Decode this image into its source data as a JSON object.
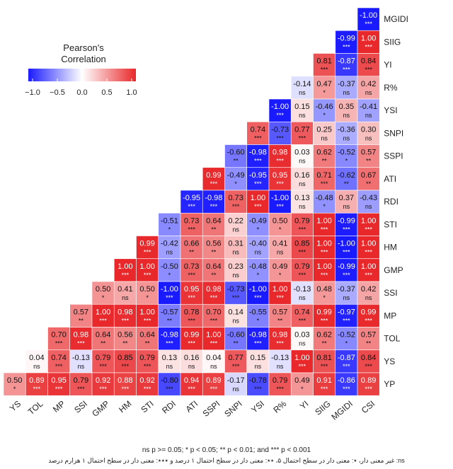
{
  "chart_data": {
    "type": "heatmap",
    "title": "",
    "legend_title": "Pearson's Correlation",
    "legend_ticks": [
      "−1.0",
      "−0.5",
      "0.0",
      "0.5",
      "1.0"
    ],
    "value_range": [
      -1,
      1
    ],
    "colors": {
      "negative": "#1a1aff",
      "zero": "#ffffff",
      "positive": "#e8282b"
    },
    "legend_placement": "top-left",
    "variables": [
      "YS",
      "TOL",
      "MP",
      "SSI",
      "GMP",
      "HM",
      "STI",
      "RDI",
      "ATI",
      "SSPI",
      "SNPI",
      "YSI",
      "R%",
      "YI",
      "SIIG",
      "MGIDI",
      "CSI"
    ],
    "row_labels": [
      "MGIDI",
      "SIIG",
      "YI",
      "R%",
      "YSI",
      "SNPI",
      "SSPI",
      "ATI",
      "RDI",
      "STI",
      "HM",
      "GMP",
      "SSI",
      "MP",
      "TOL",
      "YS",
      "YP"
    ],
    "col_labels": [
      "YS",
      "TOL",
      "MP",
      "SSI",
      "GMP",
      "HM",
      "STI",
      "RDI",
      "ATI",
      "SSPI",
      "SNPI",
      "YSI",
      "R%",
      "YI",
      "SIIG",
      "MGIDI",
      "CSI"
    ],
    "rows": [
      {
        "label": "MGIDI",
        "values": [
          "-1.00"
        ],
        "sig": [
          "***"
        ]
      },
      {
        "label": "SIIG",
        "values": [
          "-0.99",
          "1.00"
        ],
        "sig": [
          "***",
          "***"
        ]
      },
      {
        "label": "YI",
        "values": [
          "0.81",
          "-0.87",
          "0.84"
        ],
        "sig": [
          "***",
          "***",
          "***"
        ]
      },
      {
        "label": "R%",
        "values": [
          "-0.14",
          "0.47",
          "-0.37",
          "0.42"
        ],
        "sig": [
          "ns",
          "*",
          "ns",
          "ns"
        ]
      },
      {
        "label": "YSI",
        "values": [
          "-1.00",
          "0.15",
          "-0.46",
          "0.35",
          "-0.41"
        ],
        "sig": [
          "***",
          "ns",
          "*",
          "ns",
          "ns"
        ]
      },
      {
        "label": "SNPI",
        "values": [
          "0.74",
          "-0.73",
          "0.77",
          "0.25",
          "-0.36",
          "0.30"
        ],
        "sig": [
          "***",
          "***",
          "***",
          "ns",
          "ns",
          "ns"
        ]
      },
      {
        "label": "SSPI",
        "values": [
          "-0.60",
          "-0.98",
          "0.98",
          "0.03",
          "0.62",
          "-0.52",
          "0.57"
        ],
        "sig": [
          "**",
          "***",
          "***",
          "ns",
          "**",
          "*",
          "**"
        ]
      },
      {
        "label": "ATI",
        "values": [
          "0.99",
          "-0.49",
          "-0.95",
          "0.95",
          "0.16",
          "0.71",
          "-0.62",
          "0.67"
        ],
        "sig": [
          "***",
          "*",
          "***",
          "***",
          "ns",
          "***",
          "**",
          "**"
        ]
      },
      {
        "label": "RDI",
        "values": [
          "-0.95",
          "-0.98",
          "0.73",
          "1.00",
          "-1.00",
          "0.13",
          "-0.48",
          "0.37",
          "-0.43"
        ],
        "sig": [
          "***",
          "***",
          "***",
          "***",
          "***",
          "ns",
          "*",
          "ns",
          "ns"
        ]
      },
      {
        "label": "STI",
        "values": [
          "-0.51",
          "0.73",
          "0.64",
          "0.22",
          "-0.49",
          "0.50",
          "0.79",
          "1.00",
          "-0.99",
          "1.00"
        ],
        "sig": [
          "*",
          "***",
          "**",
          "ns",
          "*",
          "*",
          "***",
          "***",
          "***",
          "***"
        ]
      },
      {
        "label": "HM",
        "values": [
          "0.99",
          "-0.42",
          "0.66",
          "0.56",
          "0.31",
          "-0.40",
          "0.41",
          "0.85",
          "1.00",
          "-1.00",
          "1.00"
        ],
        "sig": [
          "***",
          "ns",
          "**",
          "**",
          "ns",
          "ns",
          "ns",
          "***",
          "***",
          "***",
          "***"
        ]
      },
      {
        "label": "GMP",
        "values": [
          "1.00",
          "1.00",
          "-0.50",
          "0.73",
          "0.64",
          "0.23",
          "-0.48",
          "0.49",
          "0.79",
          "1.00",
          "-0.99",
          "1.00"
        ],
        "sig": [
          "***",
          "***",
          "*",
          "***",
          "**",
          "ns",
          "*",
          "*",
          "***",
          "***",
          "***",
          "***"
        ]
      },
      {
        "label": "SSI",
        "values": [
          "0.50",
          "0.41",
          "0.50",
          "-1.00",
          "0.95",
          "0.98",
          "-0.73",
          "-1.00",
          "1.00",
          "-0.13",
          "0.48",
          "-0.37",
          "0.42"
        ],
        "sig": [
          "*",
          "ns",
          "*",
          "***",
          "***",
          "***",
          "***",
          "***",
          "***",
          "ns",
          "*",
          "ns",
          "ns"
        ]
      },
      {
        "label": "MP",
        "values": [
          "0.57",
          "1.00",
          "0.98",
          "1.00",
          "-0.57",
          "0.78",
          "0.70",
          "0.14",
          "-0.55",
          "0.57",
          "0.74",
          "0.99",
          "-0.97",
          "0.99"
        ],
        "sig": [
          "**",
          "***",
          "***",
          "***",
          "**",
          "***",
          "***",
          "ns",
          "*",
          "**",
          "***",
          "***",
          "***",
          "***"
        ]
      },
      {
        "label": "TOL",
        "values": [
          "0.70",
          "0.98",
          "0.64",
          "0.56",
          "0.64",
          "-0.98",
          "0.99",
          "1.00",
          "-0.60",
          "-0.98",
          "0.98",
          "0.03",
          "0.62",
          "-0.52",
          "0.57"
        ],
        "sig": [
          "***",
          "***",
          "**",
          "**",
          "**",
          "***",
          "***",
          "***",
          "**",
          "***",
          "***",
          "ns",
          "**",
          "*",
          "**"
        ]
      },
      {
        "label": "YS",
        "values": [
          "0.04",
          "0.74",
          "-0.13",
          "0.79",
          "0.85",
          "0.79",
          "0.13",
          "0.16",
          "0.04",
          "0.77",
          "0.15",
          "-0.13",
          "1.00",
          "0.81",
          "-0.87",
          "0.84"
        ],
        "sig": [
          "ns",
          "***",
          "ns",
          "***",
          "***",
          "***",
          "ns",
          "ns",
          "ns",
          "***",
          "ns",
          "ns",
          "***",
          "***",
          "***",
          "***"
        ]
      },
      {
        "label": "YP",
        "values": [
          "0.50",
          "0.89",
          "0.95",
          "0.79",
          "0.92",
          "0.88",
          "0.92",
          "-0.80",
          "0.94",
          "0.89",
          "-0.17",
          "-0.78",
          "0.79",
          "0.49",
          "0.91",
          "-0.86",
          "0.89"
        ],
        "sig": [
          "*",
          "***",
          "***",
          "***",
          "***",
          "***",
          "***",
          "***",
          "***",
          "***",
          "ns",
          "***",
          "***",
          "*",
          "***",
          "***",
          "***"
        ]
      }
    ],
    "footnote": "ns p >= 0.05; * p < 0.05; ** p < 0.01; and *** p < 0.001",
    "footnote_fa": "ns: غیر معنی دار، ٭: معنی دار در سطح احتمال ۵، ٭٭: معنی دار در سطح احتمال ۱ درصد و ٭٭٭: معنی دار در سطح احتمال ۱ هزارم درصد"
  }
}
